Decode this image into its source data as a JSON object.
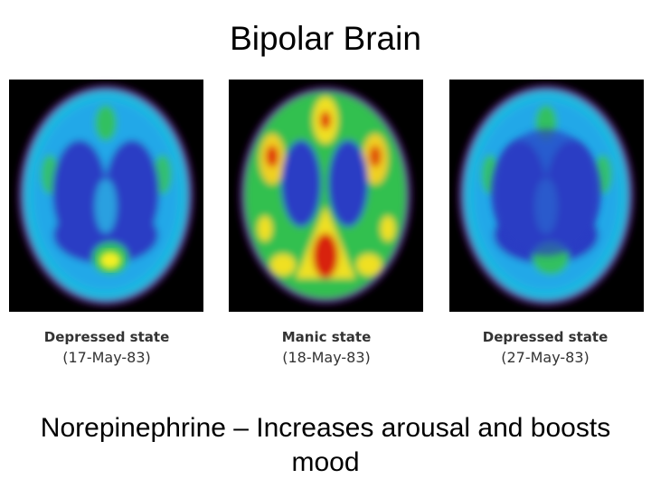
{
  "header": {
    "title": "Bipolar Brain"
  },
  "panels": [
    {
      "label": "Depressed state",
      "date": "(17-May-83)"
    },
    {
      "label": "Manic state",
      "date": "(18-May-83)"
    },
    {
      "label": "Depressed state",
      "date": "(27-May-83)"
    }
  ],
  "footer": {
    "text": "Norepinephrine – Increases arousal and boosts mood"
  }
}
